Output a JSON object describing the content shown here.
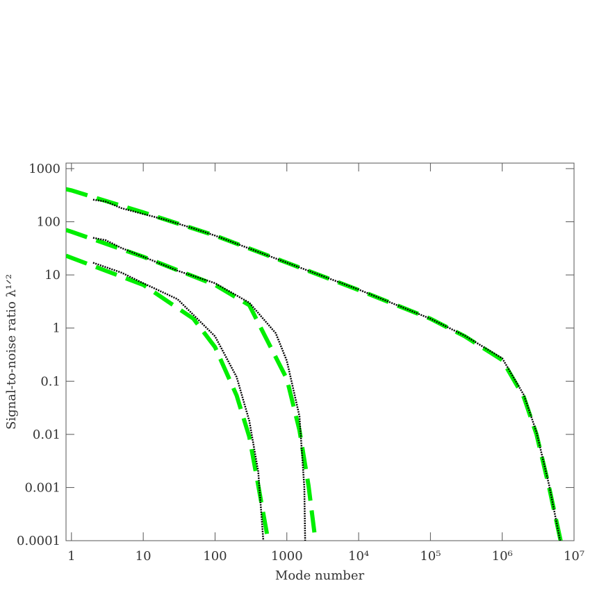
{
  "chart_data": {
    "type": "line",
    "xlabel": "Mode number",
    "ylabel": "Signal-to-noise ratio λ¹ᐟ²",
    "xscale": "log",
    "yscale": "log",
    "xlim": [
      0.84,
      10000000
    ],
    "ylim": [
      0.0001,
      1270
    ],
    "xticks": [
      1,
      10,
      100,
      1000,
      {
        "value": 10000,
        "label": "10⁴"
      },
      {
        "value": 100000,
        "label": "10⁵"
      },
      {
        "value": 1000000,
        "label": "10⁶"
      },
      {
        "value": 10000000,
        "label": "10⁷"
      }
    ],
    "yticks": [
      0.0001,
      0.001,
      0.01,
      0.1,
      1,
      10,
      100,
      1000
    ],
    "series": [
      {
        "color": "#00ee00",
        "style": "dashed",
        "x": [
          0.84,
          1,
          10,
          100,
          1000,
          10000,
          100000,
          300000,
          1000000,
          2000000,
          3000000,
          4500000,
          6500000
        ],
        "values": [
          410,
          390,
          150,
          55,
          17,
          5.2,
          1.5,
          0.7,
          0.25,
          0.05,
          0.01,
          0.001,
          0.0001
        ]
      },
      {
        "color": "#00ee00",
        "style": "dashed",
        "x": [
          0.84,
          1,
          10,
          100,
          300,
          1000,
          1500,
          2000,
          2500
        ],
        "values": [
          70,
          65,
          22,
          6.5,
          2.7,
          0.11,
          0.012,
          0.0011,
          0.0001
        ]
      },
      {
        "color": "#00ee00",
        "style": "dashed",
        "x": [
          0.84,
          1,
          10,
          50,
          100,
          200,
          300,
          400,
          550
        ],
        "values": [
          23,
          21,
          6.5,
          1.5,
          0.44,
          0.054,
          0.009,
          0.0011,
          0.0001
        ]
      },
      {
        "color": "#000000",
        "style": "dotted",
        "x": [
          2,
          3,
          5,
          10,
          20,
          50,
          100,
          1000,
          10000,
          100000,
          300000,
          1000000,
          2000000,
          3000000,
          4500000,
          6400000
        ],
        "values": [
          260,
          240,
          180,
          140,
          110,
          75,
          55,
          17,
          5.3,
          1.5,
          0.72,
          0.27,
          0.055,
          0.011,
          0.0011,
          0.0001
        ]
      },
      {
        "color": "#000000",
        "style": "dotted",
        "x": [
          2,
          3,
          5,
          10,
          30,
          100,
          300,
          700,
          1000,
          1500,
          1750,
          1800
        ],
        "values": [
          50,
          45,
          32,
          22,
          12,
          7,
          3,
          0.8,
          0.24,
          0.022,
          0.001,
          0.0001
        ]
      },
      {
        "color": "#000000",
        "style": "dotted",
        "x": [
          2,
          3,
          5,
          10,
          30,
          100,
          200,
          300,
          400,
          470
        ],
        "values": [
          17,
          14,
          11,
          7,
          3.5,
          0.7,
          0.12,
          0.018,
          0.002,
          0.0001
        ]
      }
    ]
  }
}
